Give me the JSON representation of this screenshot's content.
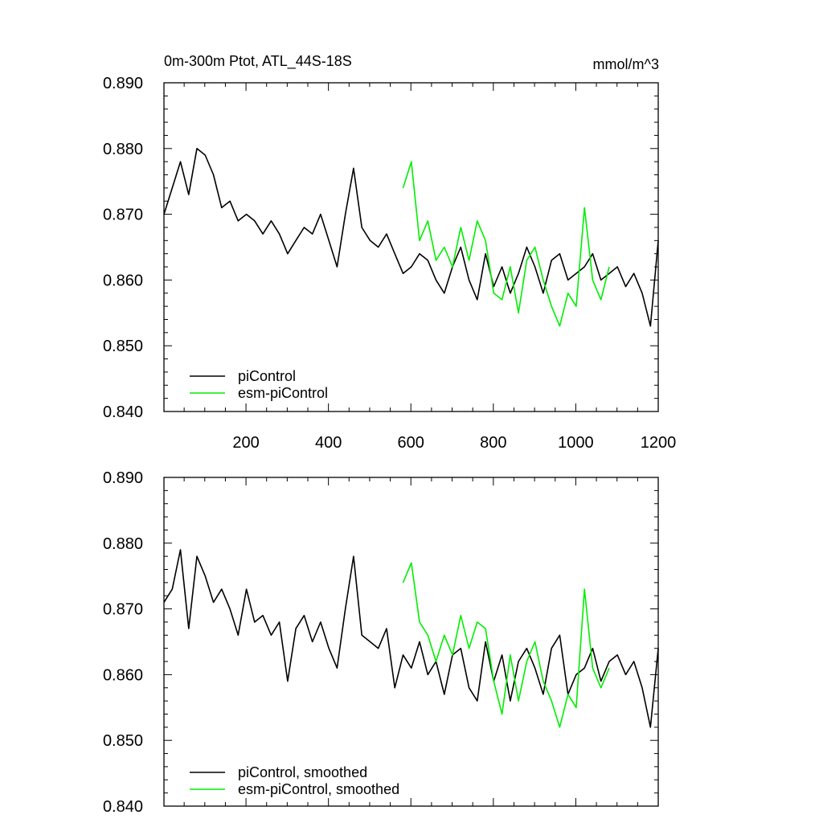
{
  "chart_data": [
    {
      "type": "line",
      "title": "0m-300m Ptot, ATL_44S-18S",
      "units": "mmol/m^3",
      "xlabel": "",
      "ylabel": "",
      "xlim": [
        1,
        1200
      ],
      "ylim": [
        0.84,
        0.89
      ],
      "xticks": [
        200,
        400,
        600,
        800,
        1000,
        1200
      ],
      "xtick_labels": [
        "200",
        "400",
        "600",
        "800",
        "1000",
        "1200"
      ],
      "yticks": [
        0.84,
        0.85,
        0.86,
        0.87,
        0.88,
        0.89
      ],
      "ytick_labels": [
        "0.840",
        "0.850",
        "0.860",
        "0.870",
        "0.880",
        "0.890"
      ],
      "grid": false,
      "legend_position": "bottom-left",
      "series": [
        {
          "name": "piControl",
          "color": "#000000",
          "x": [
            1,
            21,
            41,
            61,
            81,
            101,
            121,
            141,
            161,
            181,
            201,
            221,
            241,
            261,
            281,
            301,
            321,
            341,
            361,
            381,
            401,
            421,
            441,
            461,
            481,
            501,
            521,
            541,
            561,
            581,
            601,
            621,
            641,
            661,
            681,
            701,
            721,
            741,
            761,
            781,
            801,
            821,
            841,
            861,
            881,
            901,
            921,
            941,
            961,
            981,
            1001,
            1021,
            1041,
            1061,
            1081,
            1101,
            1121,
            1141,
            1161,
            1181,
            1200
          ],
          "values": [
            0.87,
            0.874,
            0.878,
            0.873,
            0.88,
            0.879,
            0.876,
            0.871,
            0.872,
            0.869,
            0.87,
            0.869,
            0.867,
            0.869,
            0.867,
            0.864,
            0.866,
            0.868,
            0.867,
            0.87,
            0.866,
            0.862,
            0.87,
            0.877,
            0.868,
            0.866,
            0.865,
            0.867,
            0.864,
            0.861,
            0.862,
            0.864,
            0.863,
            0.86,
            0.858,
            0.862,
            0.865,
            0.86,
            0.857,
            0.864,
            0.859,
            0.862,
            0.858,
            0.861,
            0.865,
            0.862,
            0.858,
            0.863,
            0.864,
            0.86,
            0.861,
            0.862,
            0.864,
            0.86,
            0.861,
            0.862,
            0.859,
            0.861,
            0.858,
            0.853,
            0.866
          ]
        },
        {
          "name": "esm-piControl",
          "color": "#00ee00",
          "x": [
            581,
            601,
            621,
            641,
            661,
            681,
            701,
            721,
            741,
            761,
            781,
            801,
            821,
            841,
            861,
            881,
            901,
            921,
            941,
            961,
            981,
            1001,
            1021,
            1041,
            1061,
            1081
          ],
          "values": [
            0.874,
            0.878,
            0.866,
            0.869,
            0.863,
            0.865,
            0.862,
            0.868,
            0.863,
            0.869,
            0.866,
            0.858,
            0.857,
            0.862,
            0.855,
            0.863,
            0.865,
            0.86,
            0.856,
            0.853,
            0.858,
            0.856,
            0.871,
            0.86,
            0.857,
            0.862
          ]
        }
      ]
    },
    {
      "type": "line",
      "title": "",
      "xlabel": "",
      "ylabel": "",
      "xlim": [
        1,
        1200
      ],
      "ylim": [
        0.84,
        0.89
      ],
      "yticks": [
        0.84,
        0.85,
        0.86,
        0.87,
        0.88,
        0.89
      ],
      "ytick_labels": [
        "0.840",
        "0.850",
        "0.860",
        "0.870",
        "0.880",
        "0.890"
      ],
      "grid": false,
      "legend_position": "bottom-left",
      "series": [
        {
          "name": "piControl, smoothed",
          "color": "#000000",
          "x": [
            1,
            21,
            41,
            61,
            81,
            101,
            121,
            141,
            161,
            181,
            201,
            221,
            241,
            261,
            281,
            301,
            321,
            341,
            361,
            381,
            401,
            421,
            441,
            461,
            481,
            501,
            521,
            541,
            561,
            581,
            601,
            621,
            641,
            661,
            681,
            701,
            721,
            741,
            761,
            781,
            801,
            821,
            841,
            861,
            881,
            901,
            921,
            941,
            961,
            981,
            1001,
            1021,
            1041,
            1061,
            1081,
            1101,
            1121,
            1141,
            1161,
            1181,
            1200
          ],
          "values": [
            0.871,
            0.873,
            0.879,
            0.867,
            0.878,
            0.875,
            0.871,
            0.873,
            0.87,
            0.866,
            0.873,
            0.868,
            0.869,
            0.866,
            0.868,
            0.859,
            0.867,
            0.869,
            0.865,
            0.868,
            0.864,
            0.861,
            0.87,
            0.878,
            0.866,
            0.865,
            0.864,
            0.867,
            0.858,
            0.863,
            0.861,
            0.865,
            0.86,
            0.862,
            0.857,
            0.863,
            0.864,
            0.858,
            0.856,
            0.865,
            0.859,
            0.863,
            0.856,
            0.862,
            0.864,
            0.861,
            0.857,
            0.864,
            0.866,
            0.857,
            0.86,
            0.861,
            0.864,
            0.859,
            0.862,
            0.863,
            0.86,
            0.862,
            0.858,
            0.852,
            0.864
          ]
        },
        {
          "name": "esm-piControl, smoothed",
          "color": "#00ee00",
          "x": [
            581,
            601,
            621,
            641,
            661,
            681,
            701,
            721,
            741,
            761,
            781,
            801,
            821,
            841,
            861,
            881,
            901,
            921,
            941,
            961,
            981,
            1001,
            1021,
            1041,
            1061,
            1081
          ],
          "values": [
            0.874,
            0.877,
            0.868,
            0.866,
            0.862,
            0.866,
            0.863,
            0.869,
            0.864,
            0.868,
            0.867,
            0.859,
            0.854,
            0.863,
            0.856,
            0.862,
            0.865,
            0.859,
            0.856,
            0.852,
            0.857,
            0.855,
            0.873,
            0.861,
            0.858,
            0.861
          ]
        }
      ]
    }
  ]
}
